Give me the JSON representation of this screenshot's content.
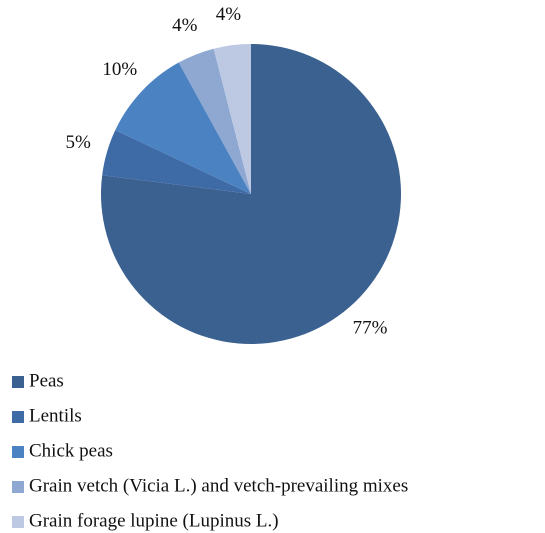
{
  "chart_data": {
    "type": "pie",
    "categories": [
      "Peas",
      "Lentils",
      "Chick peas",
      "Grain vetch (Vicia L.) and vetch-prevailing mixes",
      "Grain forage lupine (Lupinus L.)"
    ],
    "values": [
      77,
      5,
      10,
      4,
      4
    ],
    "value_labels": [
      "77%",
      "5%",
      "10%",
      "4%",
      "4%"
    ],
    "colors": [
      "#3b6190",
      "#3e6ba6",
      "#4b82c2",
      "#8ea8d2",
      "#bdc9e3"
    ],
    "legend": "bottom"
  }
}
